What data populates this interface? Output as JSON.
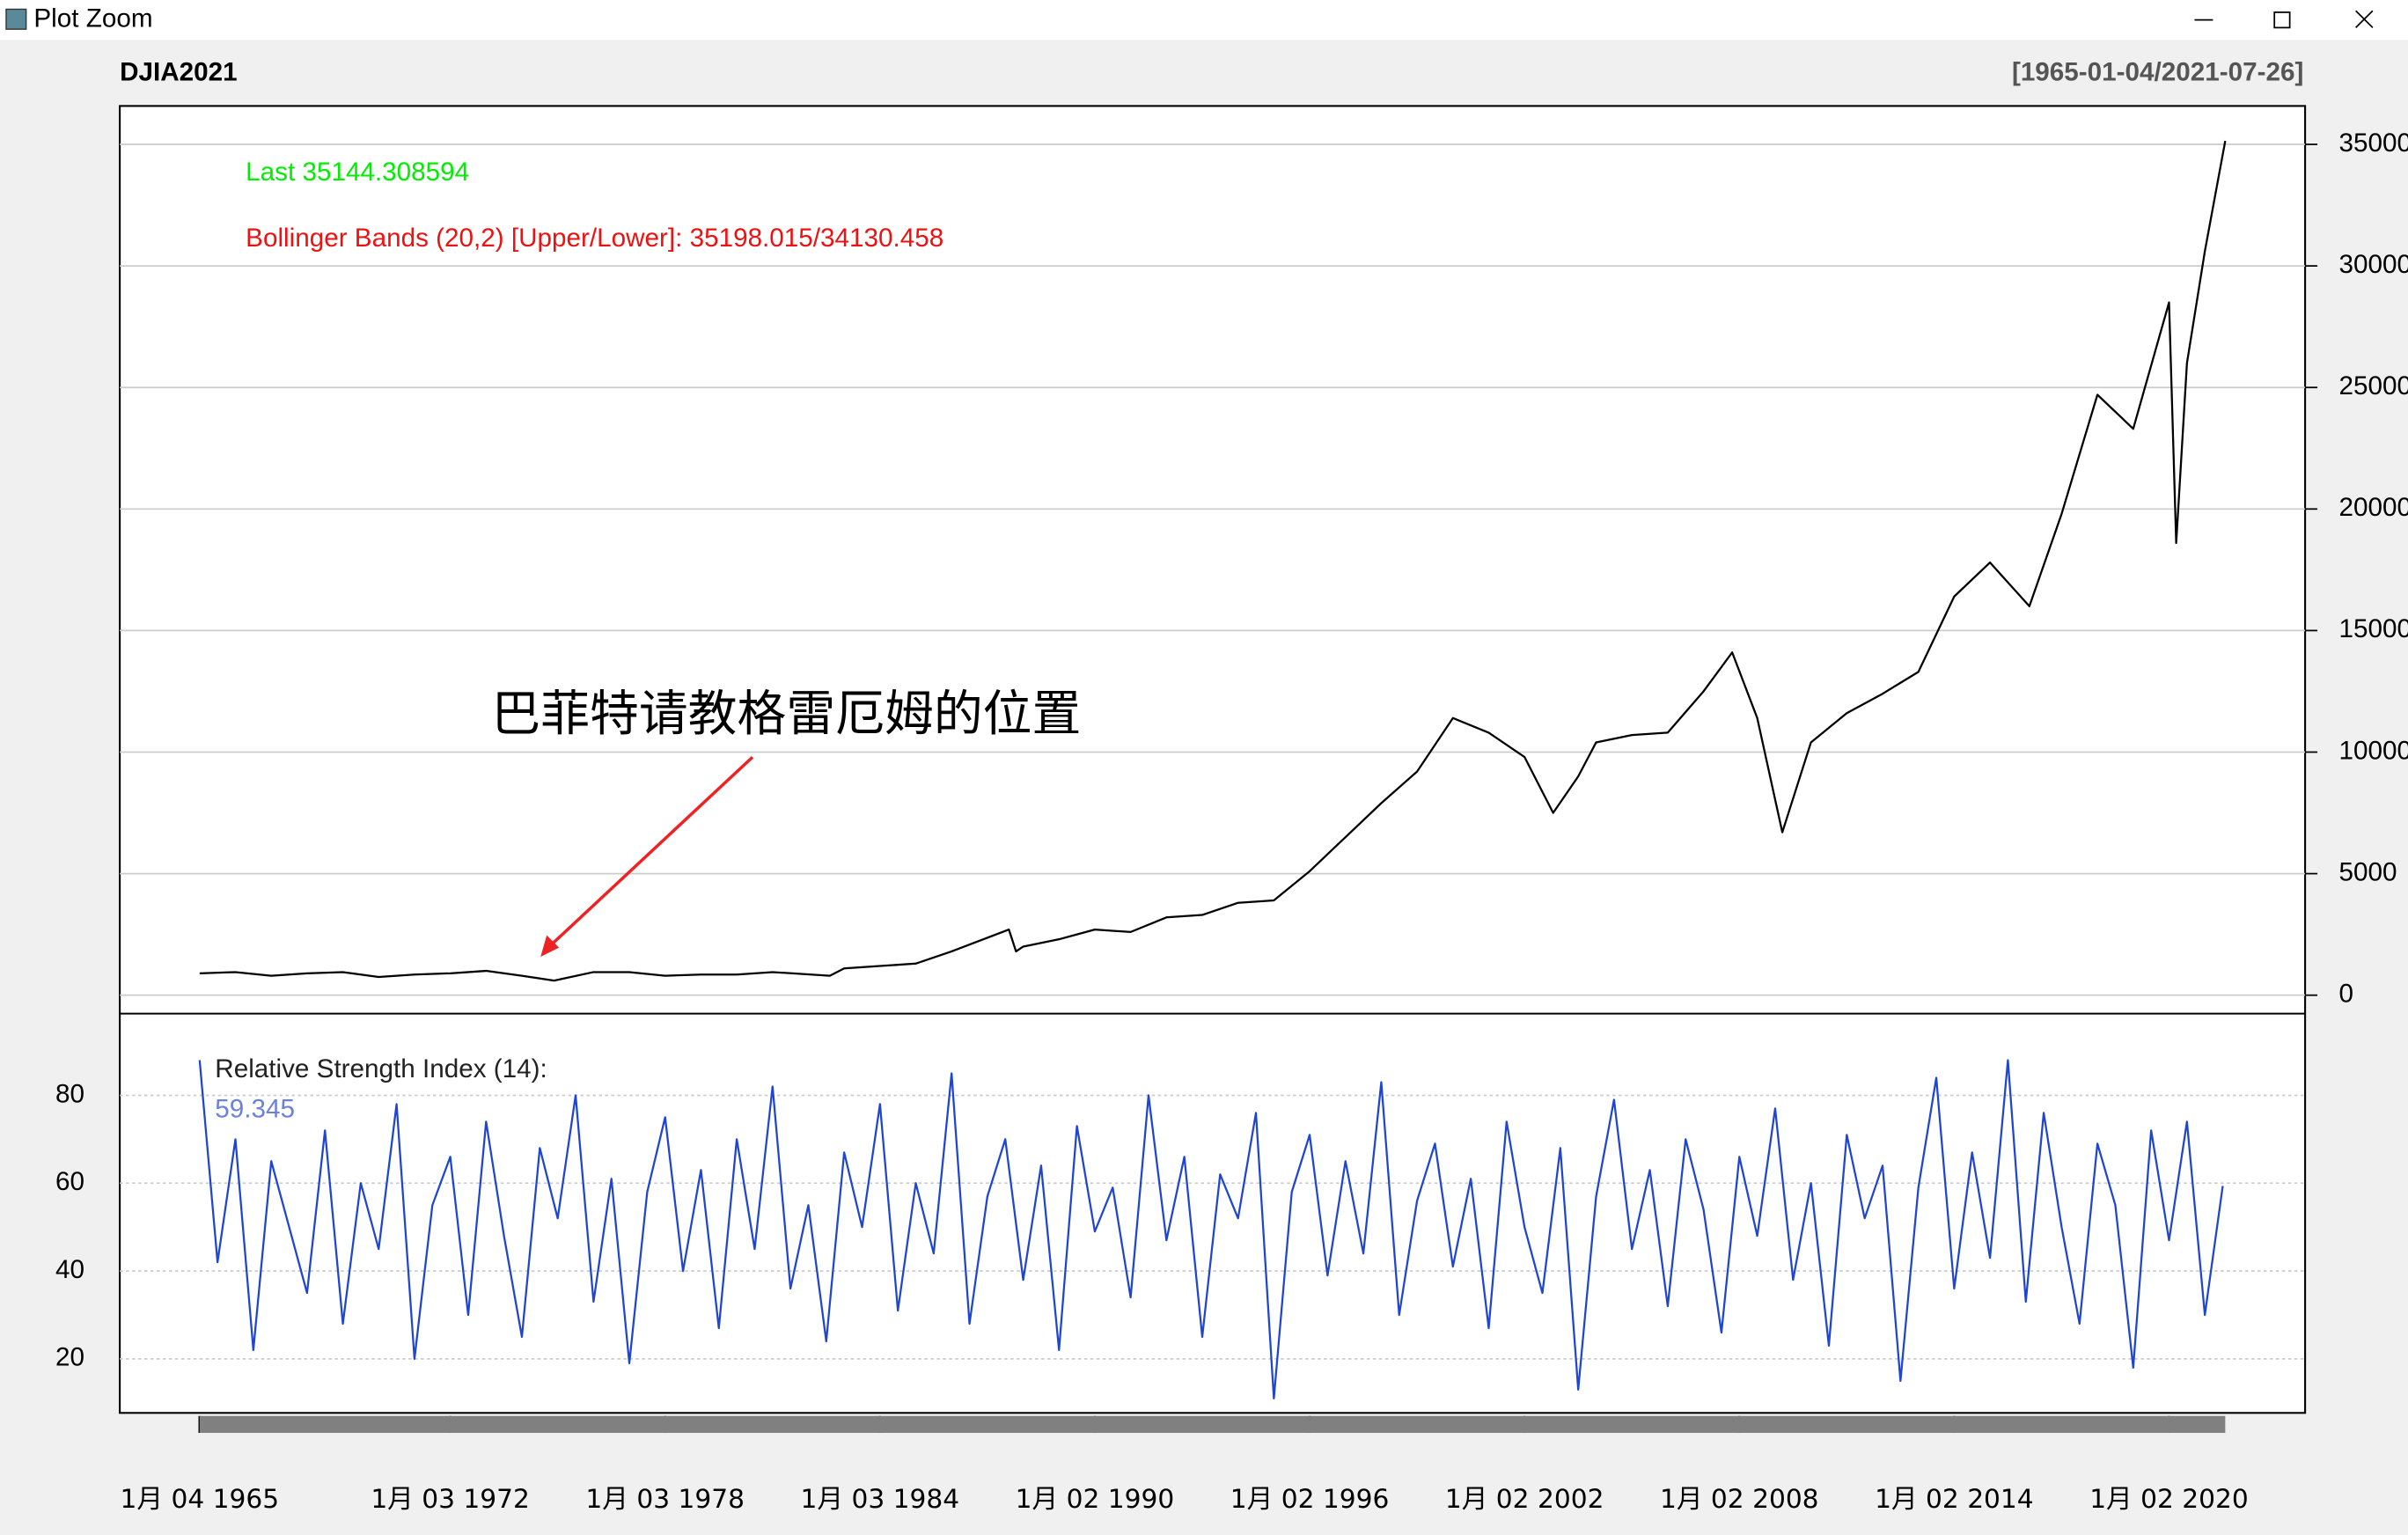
{
  "window": {
    "title": "Plot Zoom"
  },
  "chart_data": [
    {
      "type": "line",
      "title": "DJIA2021",
      "subtitle": "[1965-01-04/2021-07-26]",
      "annotations": [
        "Last 35144.308594",
        "Bollinger Bands (20,2) [Upper/Lower]: 35198.015/34130.458",
        "巴菲特请教格雷厄姆的位置"
      ],
      "x": [
        1965,
        1966,
        1967,
        1968,
        1969,
        1970,
        1971,
        1972,
        1973,
        1974,
        1974.9,
        1976,
        1977,
        1978,
        1979,
        1980,
        1981,
        1982.6,
        1983,
        1984,
        1985,
        1986,
        1987.6,
        1987.8,
        1988,
        1989,
        1990,
        1991,
        1992,
        1993,
        1994,
        1995,
        1996,
        1997,
        1998,
        1999,
        2000,
        2001,
        2002,
        2002.8,
        2003.5,
        2004,
        2005,
        2006,
        2007,
        2007.8,
        2008.5,
        2009.2,
        2010,
        2011,
        2012,
        2013,
        2014,
        2015,
        2016.1,
        2017,
        2018,
        2019,
        2020,
        2020.2,
        2020.5,
        2021,
        2021.57
      ],
      "values": [
        900,
        950,
        800,
        900,
        950,
        750,
        850,
        900,
        1000,
        800,
        600,
        950,
        950,
        800,
        850,
        850,
        950,
        800,
        1100,
        1200,
        1300,
        1800,
        2700,
        1800,
        2000,
        2300,
        2700,
        2600,
        3200,
        3300,
        3800,
        3900,
        5100,
        6500,
        7900,
        9200,
        11400,
        10800,
        9800,
        7500,
        9000,
        10400,
        10700,
        10800,
        12500,
        14100,
        11400,
        6700,
        10400,
        11600,
        12400,
        13300,
        16400,
        17800,
        16000,
        19800,
        24700,
        23300,
        28500,
        18600,
        26000,
        30600,
        35144
      ],
      "color": "#000000",
      "xlim": [
        1962.77,
        2023.8
      ],
      "ylim": [
        -758,
        36580
      ],
      "yticks": [
        0,
        5000,
        10000,
        15000,
        20000,
        25000,
        30000,
        35000
      ],
      "grid": true
    },
    {
      "type": "line",
      "annotations": [
        "Relative Strength Index (14):",
        "59.345"
      ],
      "x": [
        1965,
        1965.5,
        1966,
        1966.5,
        1967,
        1967.5,
        1968,
        1968.5,
        1969,
        1969.5,
        1970,
        1970.5,
        1971,
        1971.5,
        1972,
        1972.5,
        1973,
        1973.5,
        1974,
        1974.5,
        1975,
        1975.5,
        1976,
        1976.5,
        1977,
        1977.5,
        1978,
        1978.5,
        1979,
        1979.5,
        1980,
        1980.5,
        1981,
        1981.5,
        1982,
        1982.5,
        1983,
        1983.5,
        1984,
        1984.5,
        1985,
        1985.5,
        1986,
        1986.5,
        1987,
        1987.5,
        1988,
        1988.5,
        1989,
        1989.5,
        1990,
        1990.5,
        1991,
        1991.5,
        1992,
        1992.5,
        1993,
        1993.5,
        1994,
        1994.5,
        1995,
        1995.5,
        1996,
        1996.5,
        1997,
        1997.5,
        1998,
        1998.5,
        1999,
        1999.5,
        2000,
        2000.5,
        2001,
        2001.5,
        2002,
        2002.5,
        2003,
        2003.5,
        2004,
        2004.5,
        2005,
        2005.5,
        2006,
        2006.5,
        2007,
        2007.5,
        2008,
        2008.5,
        2009,
        2009.5,
        2010,
        2010.5,
        2011,
        2011.5,
        2012,
        2012.5,
        2013,
        2013.5,
        2014,
        2014.5,
        2015,
        2015.5,
        2016,
        2016.5,
        2017,
        2017.5,
        2018,
        2018.5,
        2019,
        2019.5,
        2020,
        2020.5,
        2021,
        2021.5
      ],
      "values": [
        88,
        42,
        70,
        22,
        65,
        50,
        35,
        72,
        28,
        60,
        45,
        78,
        20,
        55,
        66,
        30,
        74,
        48,
        25,
        68,
        52,
        80,
        33,
        61,
        19,
        58,
        75,
        40,
        63,
        27,
        70,
        45,
        82,
        36,
        55,
        24,
        67,
        50,
        78,
        31,
        60,
        44,
        85,
        28,
        57,
        70,
        38,
        64,
        22,
        73,
        49,
        59,
        34,
        80,
        47,
        66,
        25,
        62,
        52,
        76,
        11,
        58,
        71,
        39,
        65,
        44,
        83,
        30,
        56,
        69,
        41,
        61,
        27,
        74,
        50,
        35,
        68,
        13,
        57,
        79,
        45,
        63,
        32,
        70,
        54,
        26,
        66,
        48,
        77,
        38,
        60,
        23,
        71,
        52,
        64,
        15,
        59,
        84,
        36,
        67,
        43,
        88,
        33,
        76,
        50,
        28,
        69,
        55,
        18,
        72,
        47,
        74,
        30,
        59.345
      ],
      "color": "#2046d0",
      "xlim": [
        1962.77,
        2023.8
      ],
      "ylim": [
        7.7,
        98.6
      ],
      "yticks": [
        20,
        40,
        60,
        80
      ],
      "grid": true,
      "xticks": [
        {
          "value": 1965.0,
          "label": "1月 04 1965"
        },
        {
          "value": 1972.0,
          "label": "1月 03 1972"
        },
        {
          "value": 1978.0,
          "label": "1月 03 1978"
        },
        {
          "value": 1984.0,
          "label": "1月 03 1984"
        },
        {
          "value": 1990.0,
          "label": "1月 02 1990"
        },
        {
          "value": 1996.0,
          "label": "1月 02 1996"
        },
        {
          "value": 2002.0,
          "label": "1月 02 2002"
        },
        {
          "value": 2008.0,
          "label": "1月 02 2008"
        },
        {
          "value": 2014.0,
          "label": "1月 02 2014"
        },
        {
          "value": 2020.0,
          "label": "1月 02 2020"
        }
      ]
    }
  ]
}
